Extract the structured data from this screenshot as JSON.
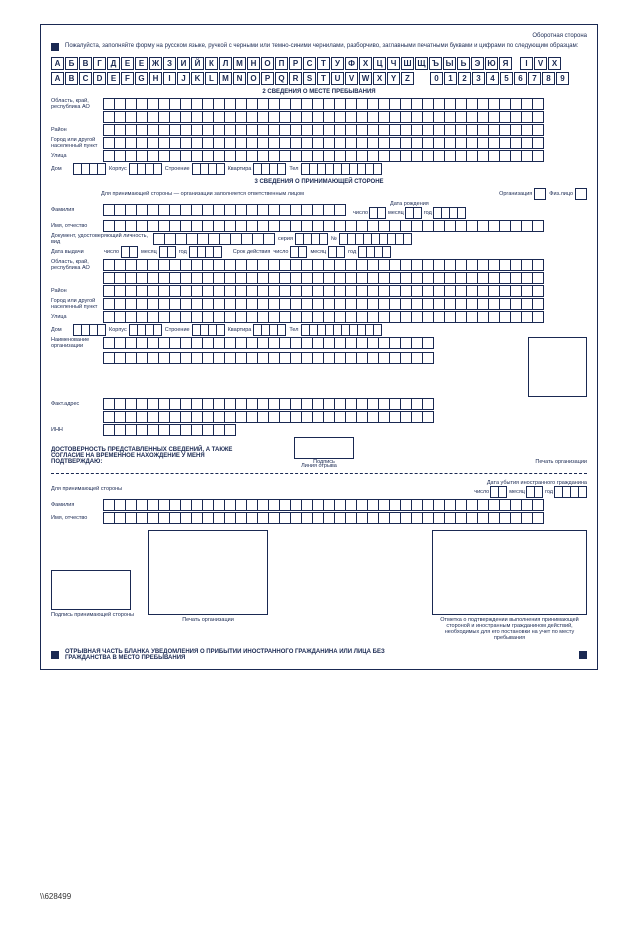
{
  "header": {
    "side": "Оборотная сторона",
    "instr": "Пожалуйста, заполняйте форму на русском языке, ручкой с черными или темно-синими чернилами, разборчиво, заглавными печатными буквами и цифрами по следующим образцам:",
    "cyr": "АБВГДЕЕЖЗИЙКЛМНОПРСТУФХЦЧШЩЪЫЬЭЮЯ",
    "punct": "I V X",
    "lat": "ABCDEFGHIJKLMNOPQRSTUVWXYZ",
    "num": "0123456789"
  },
  "s2": {
    "title": "2 СВЕДЕНИЯ О МЕСТЕ ПРЕБЫВАНИЯ",
    "region": "Область, край, республика АО",
    "district": "Район",
    "city": "Город или другой населенный пункт",
    "street": "Улица",
    "house": "Дом",
    "korp": "Корпус",
    "str": "Строение",
    "kv": "Квартира",
    "tel": "Тел"
  },
  "s3": {
    "title": "3 СВЕДЕНИЯ О ПРИНИМАЮЩЕЙ СТОРОНЕ",
    "note": "Для принимающей стороны — организации заполняется ответственным лицом",
    "org": "Организация",
    "fiz": "Физ.лицо",
    "fam": "Фамилия",
    "name": "Имя, отчество",
    "dob": "Дата рождения",
    "d": "число",
    "m": "месяц",
    "y": "год",
    "doc": "Документ, удостоверяющий личность, вид",
    "ser": "серия",
    "no": "№",
    "issued": "Дата выдачи",
    "valid": "Срок действия",
    "region": "Область, край, республика АО",
    "district": "Район",
    "city": "Город или другой населенный пункт",
    "street": "Улица",
    "house": "Дом",
    "korp": "Корпус",
    "str": "Строение",
    "kv": "Квартира",
    "tel": "Тел",
    "orgname": "Наименование организации",
    "addr": "Факт.адрес",
    "inn": "ИНН",
    "confirm": "ДОСТОВЕРНОСТЬ ПРЕДСТАВЛЕННЫХ СВЕДЕНИЙ, А ТАКЖЕ СОГЛАСИЕ НА ВРЕМЕННОЕ НАХОЖДЕНИЕ У МЕНЯ ПОДТВЕРЖДАЮ:",
    "sig": "Подпись",
    "stamp": "Печать организации"
  },
  "tear": "Линия отрыва",
  "bottom": {
    "host": "Для принимающей стороны",
    "dep": "Дата убытия иностранного гражданина",
    "d": "число",
    "m": "месяц",
    "y": "год",
    "fam": "Фамилия",
    "name": "Имя, отчество",
    "sig": "Подпись принимающей стороны",
    "stamp": "Печать организации",
    "mark": "Отметка о подтверждении выполнения принимающей стороной и иностранным гражданином действий, необходимых для его постановки на учет по месту пребывания",
    "title": "ОТРЫВНАЯ ЧАСТЬ БЛАНКА УВЕДОМЛЕНИЯ О ПРИБЫТИИ ИНОСТРАННОГО ГРАЖДАНИНА ИЛИ ЛИЦА БЕЗ ГРАЖДАНСТВА В МЕСТО ПРЕБЫВАНИЯ"
  },
  "pgnum": "\\\\628499"
}
